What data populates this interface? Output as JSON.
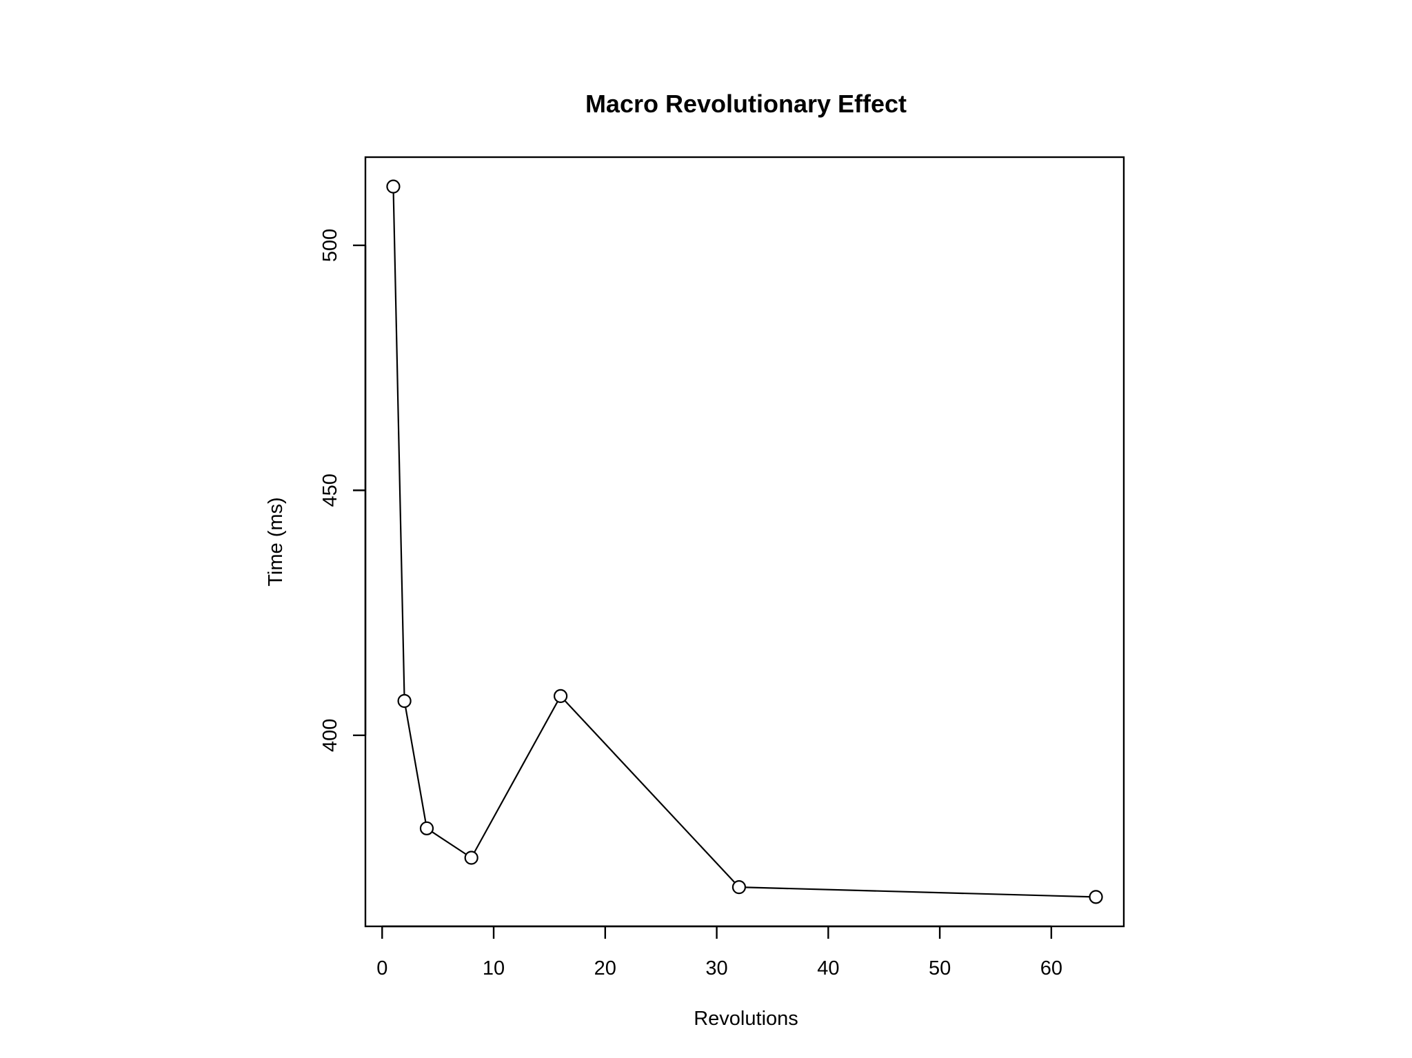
{
  "chart_data": {
    "type": "line",
    "title": "Macro Revolutionary Effect",
    "xlabel": "Revolutions",
    "ylabel": "Time (ms)",
    "xlim": [
      -1.5,
      66.5
    ],
    "ylim": [
      361,
      518
    ],
    "xticks": [
      0,
      10,
      20,
      30,
      40,
      50,
      60
    ],
    "yticks": [
      400,
      450,
      500
    ],
    "series": [
      {
        "x": [
          1,
          2,
          4,
          8,
          16,
          32,
          64
        ],
        "y": [
          512,
          407,
          381,
          375,
          408,
          369,
          367
        ]
      }
    ],
    "grid": false,
    "legend": "none"
  }
}
